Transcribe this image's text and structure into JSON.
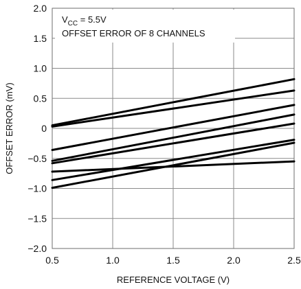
{
  "chart_data": {
    "type": "line",
    "xlabel": "REFERENCE VOLTAGE (V)",
    "ylabel": "OFFSET ERROR (mV)",
    "xlim": [
      0.5,
      2.5
    ],
    "ylim": [
      -2.0,
      2.0
    ],
    "x_ticks": [
      "0.5",
      "1.0",
      "1.5",
      "2.0",
      "2.5"
    ],
    "y_ticks": [
      "2.0",
      "1.5",
      "1.0",
      "0.5",
      "0",
      "−0.5",
      "−1.0",
      "−1.5",
      "−2.0"
    ],
    "grid": true,
    "annotation": {
      "line1_prefix": "V",
      "line1_sub": "CC",
      "line1_suffix": " = 5.5V",
      "line2": "OFFSET ERROR OF 8 CHANNELS"
    },
    "series": [
      {
        "x": [
          0.5,
          2.5
        ],
        "y": [
          0.05,
          0.82
        ]
      },
      {
        "x": [
          0.5,
          2.5
        ],
        "y": [
          0.03,
          0.63
        ]
      },
      {
        "x": [
          0.5,
          2.5
        ],
        "y": [
          -0.36,
          0.39
        ]
      },
      {
        "x": [
          0.5,
          2.5
        ],
        "y": [
          -0.54,
          0.23
        ]
      },
      {
        "x": [
          0.5,
          2.5
        ],
        "y": [
          -0.58,
          0.08
        ]
      },
      {
        "x": [
          0.5,
          2.5
        ],
        "y": [
          -0.72,
          -0.55
        ]
      },
      {
        "x": [
          0.5,
          2.5
        ],
        "y": [
          -0.86,
          -0.19
        ]
      },
      {
        "x": [
          0.5,
          2.5
        ],
        "y": [
          -0.99,
          -0.24
        ]
      }
    ]
  }
}
